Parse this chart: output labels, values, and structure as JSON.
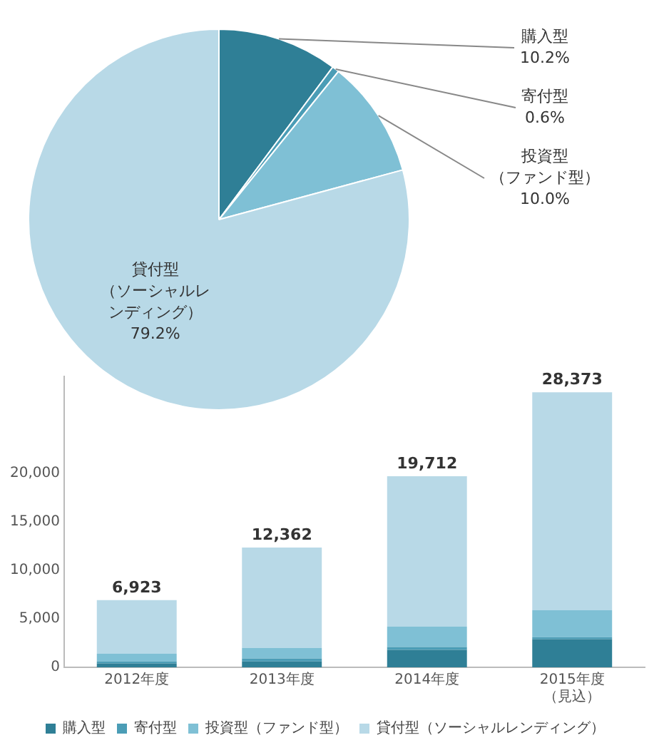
{
  "chart_data": [
    {
      "type": "pie",
      "categories": [
        "購入型",
        "寄付型",
        "投資型（ファンド型）",
        "貸付型（ソーシャルレンディング）"
      ],
      "values": [
        10.2,
        0.6,
        10.0,
        79.2
      ],
      "colors": [
        "#2f7f96",
        "#4b9db6",
        "#7fc0d5",
        "#b8d9e7"
      ],
      "value_labels": [
        "10.2%",
        "0.6%",
        "10.0%",
        "79.2%"
      ],
      "legend": false
    },
    {
      "type": "bar",
      "stacked": true,
      "categories": [
        "2012年度",
        "2013年度",
        "2014年度",
        "2015年度（見込）"
      ],
      "series": [
        {
          "name": "購入型",
          "color": "#2f7f96",
          "values": [
            400,
            600,
            1800,
            2900
          ]
        },
        {
          "name": "寄付型",
          "color": "#4b9db6",
          "values": [
            200,
            300,
            300,
            200
          ]
        },
        {
          "name": "投資型（ファンド型）",
          "color": "#7fc0d5",
          "values": [
            800,
            1100,
            2100,
            2800
          ]
        },
        {
          "name": "貸付型（ソーシャルレンディング）",
          "color": "#b8d9e7",
          "values": [
            5523,
            10362,
            15512,
            22473
          ]
        }
      ],
      "totals": [
        "6,923",
        "12,362",
        "19,712",
        "28,373"
      ],
      "ylim": [
        0,
        30000
      ],
      "yticks": [
        0,
        {
          "value": 5000,
          "label": "5,000"
        },
        {
          "value": 10000,
          "label": "10,000"
        },
        {
          "value": 15000,
          "label": "15,000"
        },
        {
          "value": 20000,
          "label": "20,000"
        }
      ],
      "grid": false,
      "legend": "bottom"
    }
  ]
}
